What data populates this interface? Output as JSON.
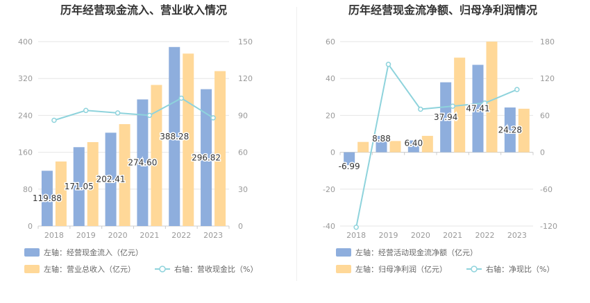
{
  "chart_data": [
    {
      "type": "bar",
      "title": "历年经营现金流入、营业收入情况",
      "categories": [
        "2018",
        "2019",
        "2020",
        "2021",
        "2022",
        "2023"
      ],
      "left_axis": {
        "ticks": [
          "0",
          "80",
          "160",
          "240",
          "320",
          "400"
        ],
        "ylim": [
          0,
          400
        ]
      },
      "right_axis": {
        "ticks": [
          "0",
          "30",
          "60",
          "90",
          "120",
          "150"
        ],
        "ylim": [
          0,
          150
        ]
      },
      "grid": true,
      "legend_position": "bottom-left",
      "series": [
        {
          "name": "左轴：经营现金流入（亿元）",
          "type": "bar",
          "axis": "left",
          "color": "#8eaedd",
          "values": [
            119.88,
            171.05,
            202.41,
            274.6,
            388.28,
            296.82
          ],
          "labels": [
            "119.88",
            "171.05",
            "202.41",
            "274.60",
            "388.28",
            "296.82"
          ]
        },
        {
          "name": "左轴：营业总收入（亿元）",
          "type": "bar",
          "axis": "left",
          "color": "#ffd898",
          "values": [
            140,
            182,
            221,
            306,
            374,
            336
          ]
        },
        {
          "name": "右轴：营收现金比（%）",
          "type": "line",
          "axis": "right",
          "color": "#8ed3dc",
          "values": [
            86,
            94,
            92,
            90,
            104,
            88
          ]
        }
      ]
    },
    {
      "type": "bar",
      "title": "历年经营现金流净额、归母净利润情况",
      "categories": [
        "2018",
        "2019",
        "2020",
        "2021",
        "2022",
        "2023"
      ],
      "left_axis": {
        "ticks": [
          "-40",
          "-20",
          "0",
          "20",
          "40",
          "60"
        ],
        "ylim": [
          -40,
          60
        ]
      },
      "right_axis": {
        "ticks": [
          "-120",
          "-60",
          "0",
          "60",
          "120",
          "180"
        ],
        "ylim": [
          -120,
          180
        ]
      },
      "grid": true,
      "legend_position": "bottom-left",
      "series": [
        {
          "name": "左轴：经营活动现金流净额（亿元）",
          "type": "bar",
          "axis": "left",
          "color": "#8eaedd",
          "values": [
            -6.99,
            8.88,
            6.4,
            37.94,
            47.41,
            24.28
          ],
          "labels": [
            "-6.99",
            "8.88",
            "6.40",
            "37.94",
            "47.41",
            "24.28"
          ]
        },
        {
          "name": "左轴：归母净利润（亿元）",
          "type": "bar",
          "axis": "left",
          "color": "#ffd898",
          "values": [
            5.6,
            6.1,
            8.9,
            51.3,
            60,
            23.6
          ]
        },
        {
          "name": "右轴：净现比（%）",
          "type": "line",
          "axis": "right",
          "color": "#8ed3dc",
          "values": [
            -122,
            143,
            70,
            75,
            80,
            102
          ]
        }
      ]
    }
  ]
}
